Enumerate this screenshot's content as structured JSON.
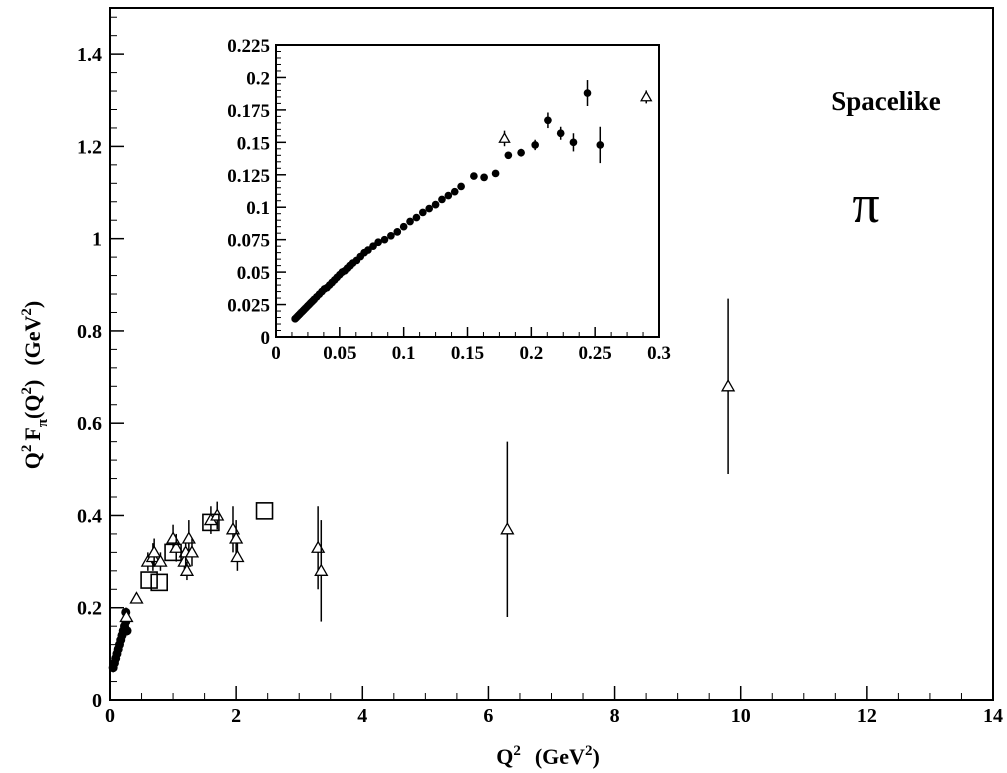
{
  "chart_data": [
    {
      "id": "main",
      "type": "scatter",
      "xlabel_base": "Q",
      "xlabel_sup": "2",
      "xlabel_units": "(GeV",
      "xlabel_units_sup": "2",
      "xlabel_units_close": ")",
      "ylabel_prefix": "Q",
      "ylabel_sup1": "2",
      "ylabel_F": "F",
      "ylabel_sub": "π",
      "ylabel_arg": "(Q",
      "ylabel_sup2": "2",
      "ylabel_arg_close": ")",
      "ylabel_units": "(GeV",
      "ylabel_units_sup": "2",
      "ylabel_units_close": ")",
      "xlim": [
        0,
        14
      ],
      "ylim": [
        0,
        1.5
      ],
      "x_ticks": [
        0,
        2,
        4,
        6,
        8,
        10,
        12,
        14
      ],
      "x_tick_labels": [
        "0",
        "2",
        "4",
        "6",
        "8",
        "10",
        "12",
        "14"
      ],
      "y_ticks": [
        0,
        0.2,
        0.4,
        0.6,
        0.8,
        1.0,
        1.2,
        1.4
      ],
      "y_tick_labels": [
        "0",
        "0.2",
        "0.4",
        "0.6",
        "0.8",
        "1",
        "1.2",
        "1.4"
      ],
      "annotation_label": "Spacelike",
      "annotation_symbol": "π",
      "series": [
        {
          "marker": "circle",
          "points": [
            {
              "x": 0.05,
              "y": 0.07,
              "err": 0.01
            },
            {
              "x": 0.07,
              "y": 0.08,
              "err": 0.01
            },
            {
              "x": 0.09,
              "y": 0.09,
              "err": 0.01
            },
            {
              "x": 0.11,
              "y": 0.1,
              "err": 0.01
            },
            {
              "x": 0.13,
              "y": 0.11,
              "err": 0.01
            },
            {
              "x": 0.15,
              "y": 0.12,
              "err": 0.01
            },
            {
              "x": 0.17,
              "y": 0.13,
              "err": 0.01
            },
            {
              "x": 0.19,
              "y": 0.14,
              "err": 0.01
            },
            {
              "x": 0.21,
              "y": 0.15,
              "err": 0.01
            },
            {
              "x": 0.23,
              "y": 0.16,
              "err": 0.01
            },
            {
              "x": 0.25,
              "y": 0.17,
              "err": 0.01
            },
            {
              "x": 0.27,
              "y": 0.15,
              "err": 0.01
            },
            {
              "x": 0.25,
              "y": 0.19,
              "err": 0.01
            }
          ]
        },
        {
          "marker": "triangle",
          "points": [
            {
              "x": 0.26,
              "y": 0.18,
              "err": 0.02
            },
            {
              "x": 0.42,
              "y": 0.22,
              "err": 0.01
            },
            {
              "x": 0.6,
              "y": 0.3,
              "err": 0.02
            },
            {
              "x": 0.68,
              "y": 0.31,
              "err": 0.03
            },
            {
              "x": 0.7,
              "y": 0.32,
              "err": 0.03
            },
            {
              "x": 0.8,
              "y": 0.3,
              "err": 0.02
            },
            {
              "x": 1.0,
              "y": 0.35,
              "err": 0.03
            },
            {
              "x": 1.05,
              "y": 0.33,
              "err": 0.03
            },
            {
              "x": 1.18,
              "y": 0.3,
              "err": 0.03
            },
            {
              "x": 1.2,
              "y": 0.32,
              "err": 0.03
            },
            {
              "x": 1.22,
              "y": 0.28,
              "err": 0.02
            },
            {
              "x": 1.25,
              "y": 0.35,
              "err": 0.04
            },
            {
              "x": 1.3,
              "y": 0.32,
              "err": 0.03
            },
            {
              "x": 1.6,
              "y": 0.39,
              "err": 0.03
            },
            {
              "x": 1.7,
              "y": 0.4,
              "err": 0.03
            },
            {
              "x": 1.95,
              "y": 0.37,
              "err": 0.05
            },
            {
              "x": 2.0,
              "y": 0.35,
              "err": 0.04
            },
            {
              "x": 2.02,
              "y": 0.31,
              "err": 0.03
            },
            {
              "x": 3.3,
              "y": 0.33,
              "err": 0.09
            },
            {
              "x": 3.35,
              "y": 0.28,
              "err": 0.11
            },
            {
              "x": 6.3,
              "y": 0.37,
              "err": 0.19
            },
            {
              "x": 9.8,
              "y": 0.68,
              "err": 0.19
            }
          ]
        },
        {
          "marker": "square",
          "points": [
            {
              "x": 0.62,
              "y": 0.26,
              "err": 0.0
            },
            {
              "x": 0.78,
              "y": 0.255,
              "err": 0.0
            },
            {
              "x": 1.0,
              "y": 0.32,
              "err": 0.0
            },
            {
              "x": 1.6,
              "y": 0.385,
              "err": 0.0
            },
            {
              "x": 2.45,
              "y": 0.41,
              "err": 0.0
            }
          ]
        }
      ]
    },
    {
      "id": "inset",
      "type": "scatter",
      "xlim": [
        0,
        0.3
      ],
      "ylim": [
        0,
        0.225
      ],
      "x_ticks": [
        0,
        0.05,
        0.1,
        0.15,
        0.2,
        0.25,
        0.3
      ],
      "x_tick_labels": [
        "0",
        "0.05",
        "0.1",
        "0.15",
        "0.2",
        "0.25",
        "0.3"
      ],
      "y_ticks": [
        0,
        0.025,
        0.05,
        0.075,
        0.1,
        0.125,
        0.15,
        0.175,
        0.2,
        0.225
      ],
      "y_tick_labels": [
        "0",
        "0.025",
        "0.05",
        "0.075",
        "0.1",
        "0.125",
        "0.15",
        "0.175",
        "0.2",
        "0.225"
      ],
      "series": [
        {
          "marker": "circle",
          "points": [
            {
              "x": 0.015,
              "y": 0.014,
              "err": 0
            },
            {
              "x": 0.016,
              "y": 0.015,
              "err": 0
            },
            {
              "x": 0.017,
              "y": 0.016,
              "err": 0
            },
            {
              "x": 0.018,
              "y": 0.017,
              "err": 0
            },
            {
              "x": 0.019,
              "y": 0.018,
              "err": 0
            },
            {
              "x": 0.02,
              "y": 0.019,
              "err": 0
            },
            {
              "x": 0.021,
              "y": 0.02,
              "err": 0
            },
            {
              "x": 0.022,
              "y": 0.021,
              "err": 0
            },
            {
              "x": 0.023,
              "y": 0.022,
              "err": 0
            },
            {
              "x": 0.024,
              "y": 0.023,
              "err": 0
            },
            {
              "x": 0.025,
              "y": 0.024,
              "err": 0
            },
            {
              "x": 0.026,
              "y": 0.025,
              "err": 0
            },
            {
              "x": 0.027,
              "y": 0.026,
              "err": 0
            },
            {
              "x": 0.028,
              "y": 0.027,
              "err": 0
            },
            {
              "x": 0.029,
              "y": 0.028,
              "err": 0
            },
            {
              "x": 0.03,
              "y": 0.029,
              "err": 0
            },
            {
              "x": 0.032,
              "y": 0.031,
              "err": 0
            },
            {
              "x": 0.034,
              "y": 0.033,
              "err": 0
            },
            {
              "x": 0.036,
              "y": 0.035,
              "err": 0
            },
            {
              "x": 0.038,
              "y": 0.037,
              "err": 0
            },
            {
              "x": 0.04,
              "y": 0.038,
              "err": 0
            },
            {
              "x": 0.042,
              "y": 0.04,
              "err": 0
            },
            {
              "x": 0.044,
              "y": 0.042,
              "err": 0
            },
            {
              "x": 0.046,
              "y": 0.044,
              "err": 0
            },
            {
              "x": 0.048,
              "y": 0.046,
              "err": 0
            },
            {
              "x": 0.05,
              "y": 0.048,
              "err": 0
            },
            {
              "x": 0.052,
              "y": 0.05,
              "err": 0
            },
            {
              "x": 0.054,
              "y": 0.051,
              "err": 0
            },
            {
              "x": 0.056,
              "y": 0.053,
              "err": 0
            },
            {
              "x": 0.058,
              "y": 0.055,
              "err": 0
            },
            {
              "x": 0.06,
              "y": 0.057,
              "err": 0
            },
            {
              "x": 0.063,
              "y": 0.059,
              "err": 0
            },
            {
              "x": 0.066,
              "y": 0.062,
              "err": 0
            },
            {
              "x": 0.069,
              "y": 0.065,
              "err": 0
            },
            {
              "x": 0.072,
              "y": 0.067,
              "err": 0
            },
            {
              "x": 0.076,
              "y": 0.07,
              "err": 0
            },
            {
              "x": 0.08,
              "y": 0.073,
              "err": 0
            },
            {
              "x": 0.085,
              "y": 0.075,
              "err": 0
            },
            {
              "x": 0.09,
              "y": 0.078,
              "err": 0
            },
            {
              "x": 0.095,
              "y": 0.081,
              "err": 0
            },
            {
              "x": 0.1,
              "y": 0.085,
              "err": 0
            },
            {
              "x": 0.105,
              "y": 0.089,
              "err": 0
            },
            {
              "x": 0.11,
              "y": 0.092,
              "err": 0
            },
            {
              "x": 0.115,
              "y": 0.096,
              "err": 0
            },
            {
              "x": 0.12,
              "y": 0.099,
              "err": 0
            },
            {
              "x": 0.125,
              "y": 0.102,
              "err": 0
            },
            {
              "x": 0.13,
              "y": 0.106,
              "err": 0
            },
            {
              "x": 0.135,
              "y": 0.109,
              "err": 0
            },
            {
              "x": 0.14,
              "y": 0.112,
              "err": 0
            },
            {
              "x": 0.145,
              "y": 0.116,
              "err": 0
            },
            {
              "x": 0.155,
              "y": 0.124,
              "err": 0
            },
            {
              "x": 0.163,
              "y": 0.123,
              "err": 0
            },
            {
              "x": 0.172,
              "y": 0.126,
              "err": 0
            },
            {
              "x": 0.182,
              "y": 0.14,
              "err": 0.002
            },
            {
              "x": 0.192,
              "y": 0.142,
              "err": 0.003
            },
            {
              "x": 0.203,
              "y": 0.148,
              "err": 0.004
            },
            {
              "x": 0.213,
              "y": 0.167,
              "err": 0.006
            },
            {
              "x": 0.223,
              "y": 0.157,
              "err": 0.005
            },
            {
              "x": 0.233,
              "y": 0.15,
              "err": 0.007
            },
            {
              "x": 0.244,
              "y": 0.188,
              "err": 0.01
            },
            {
              "x": 0.254,
              "y": 0.148,
              "err": 0.014
            }
          ]
        },
        {
          "marker": "triangle",
          "points": [
            {
              "x": 0.179,
              "y": 0.153,
              "err": 0.006
            },
            {
              "x": 0.29,
              "y": 0.185,
              "err": 0.005
            }
          ]
        }
      ]
    }
  ]
}
